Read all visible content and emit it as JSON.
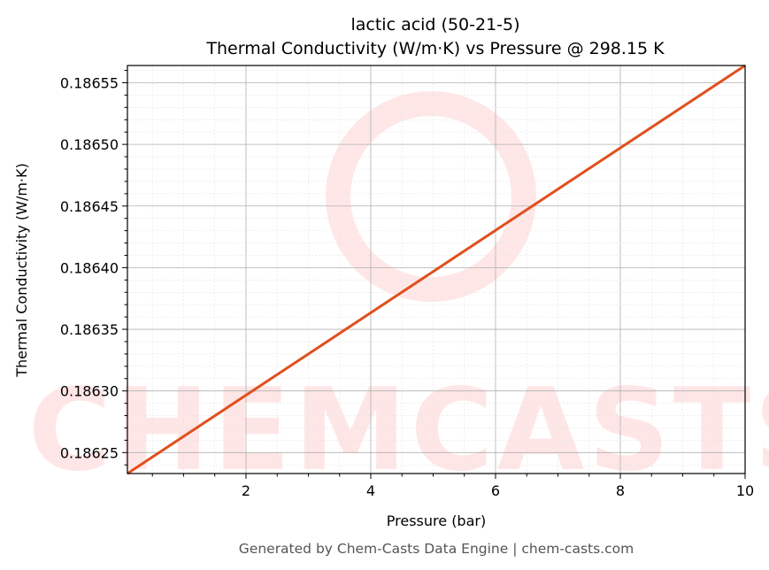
{
  "chart_data": {
    "type": "line",
    "title": "lactic acid (50-21-5)",
    "subtitle": "Thermal Conductivity (W/m·K) vs Pressure @ 298.15 K",
    "xlabel": "Pressure (bar)",
    "ylabel": "Thermal Conductivity (W/m·K)",
    "xlim": [
      0.1,
      10
    ],
    "ylim": [
      0.186233,
      0.186564
    ],
    "xticks": [
      2,
      4,
      6,
      8,
      10
    ],
    "xtick_labels": [
      "2",
      "4",
      "6",
      "8",
      "10"
    ],
    "yticks": [
      0.18625,
      0.1863,
      0.18635,
      0.1864,
      0.18645,
      0.1865,
      0.18655
    ],
    "ytick_labels": [
      "0.18625",
      "0.18630",
      "0.18635",
      "0.18640",
      "0.18645",
      "0.18650",
      "0.18655"
    ],
    "grid": true,
    "series": [
      {
        "x": [
          0.1,
          10
        ],
        "y": [
          0.186233,
          0.186564
        ],
        "color": "#e0501e"
      }
    ],
    "watermark": "CHEMCASTS",
    "footer": "Generated by Chem-Casts Data Engine | chem-casts.com"
  }
}
